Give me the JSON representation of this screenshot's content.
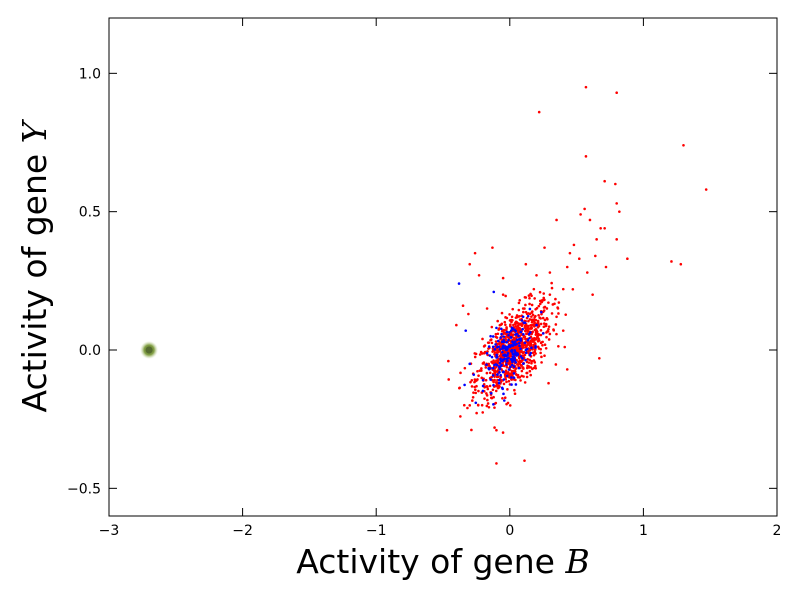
{
  "chart_data": {
    "type": "scatter",
    "title": "",
    "xlabel_text": "Activity of gene ",
    "xlabel_var": "B",
    "ylabel_text": "Activity of gene ",
    "ylabel_var": "Y",
    "xlim": [
      -3,
      2
    ],
    "ylim": [
      -0.6,
      1.2
    ],
    "xticks": [
      -3,
      -2,
      -1,
      0,
      1,
      2
    ],
    "xtick_labels": [
      "−3",
      "−2",
      "−1",
      "0",
      "1",
      "2"
    ],
    "yticks": [
      -0.5,
      0.0,
      0.5,
      1.0
    ],
    "ytick_labels": [
      "−0.5",
      "0.0",
      "0.5",
      "1.0"
    ],
    "grid": false,
    "legend": "none",
    "colors": {
      "red_series": "#ff0000",
      "blue_series": "#0000ff",
      "marker": "#6b8e23",
      "marker_halo": "#9acd32"
    },
    "series": [
      {
        "color": "#ff0000",
        "points": [
          [
            0.57,
            0.95
          ],
          [
            0.8,
            0.93
          ],
          [
            0.22,
            0.86
          ],
          [
            1.3,
            0.74
          ],
          [
            0.57,
            0.7
          ],
          [
            1.47,
            0.58
          ],
          [
            0.71,
            0.61
          ],
          [
            0.79,
            0.6
          ],
          [
            0.8,
            0.53
          ],
          [
            0.82,
            0.5
          ],
          [
            0.56,
            0.51
          ],
          [
            0.53,
            0.49
          ],
          [
            0.6,
            0.47
          ],
          [
            0.35,
            0.47
          ],
          [
            0.68,
            0.44
          ],
          [
            0.71,
            0.44
          ],
          [
            0.8,
            0.4
          ],
          [
            0.65,
            0.4
          ],
          [
            0.48,
            0.38
          ],
          [
            0.88,
            0.33
          ],
          [
            1.21,
            0.32
          ],
          [
            1.28,
            0.31
          ],
          [
            0.64,
            0.34
          ],
          [
            0.72,
            0.3
          ],
          [
            0.52,
            0.33
          ],
          [
            0.43,
            0.3
          ],
          [
            0.26,
            0.37
          ],
          [
            0.58,
            0.28
          ],
          [
            0.62,
            0.2
          ],
          [
            0.4,
            0.22
          ],
          [
            -0.26,
            0.35
          ],
          [
            -0.13,
            0.37
          ],
          [
            -0.3,
            0.31
          ],
          [
            -0.23,
            0.27
          ],
          [
            -0.05,
            0.26
          ],
          [
            -0.35,
            0.16
          ],
          [
            -0.31,
            0.13
          ],
          [
            -0.17,
            0.15
          ],
          [
            -0.4,
            0.09
          ],
          [
            -0.46,
            -0.04
          ],
          [
            -0.47,
            -0.29
          ],
          [
            -0.37,
            -0.24
          ],
          [
            -0.3,
            -0.2
          ],
          [
            -0.1,
            -0.29
          ],
          [
            -0.1,
            -0.41
          ],
          [
            0.11,
            -0.4
          ],
          [
            0.67,
            -0.03
          ],
          [
            0.43,
            -0.07
          ],
          [
            0.29,
            -0.12
          ],
          [
            0.4,
            0.07
          ],
          [
            0.35,
            0.12
          ],
          [
            0.3,
            0.2
          ],
          [
            0.25,
            0.18
          ],
          [
            0.18,
            0.22
          ],
          [
            0.2,
            0.27
          ],
          [
            0.12,
            0.31
          ],
          [
            0.1,
            0.15
          ],
          [
            -0.05,
            0.2
          ],
          [
            0.3,
            0.28
          ],
          [
            0.45,
            0.35
          ]
        ]
      },
      {
        "color": "#0000ff",
        "points": [
          [
            -0.38,
            0.24
          ],
          [
            -0.12,
            0.21
          ],
          [
            -0.33,
            0.07
          ],
          [
            -0.3,
            -0.05
          ],
          [
            -0.2,
            -0.13
          ],
          [
            -0.1,
            0.08
          ],
          [
            0.1,
            0.12
          ],
          [
            0.2,
            0.09
          ],
          [
            0.25,
            0.06
          ],
          [
            -0.05,
            -0.08
          ],
          [
            0.02,
            0.03
          ],
          [
            0.05,
            -0.02
          ],
          [
            -0.08,
            -0.12
          ],
          [
            0.12,
            0.0
          ],
          [
            -0.15,
            -0.02
          ]
        ]
      }
    ],
    "cluster": {
      "color": "#ff0000",
      "center": [
        0.03,
        0.0
      ],
      "spread": [
        0.14,
        0.085
      ],
      "correlation": 0.62,
      "count": 900
    },
    "blue_cluster": {
      "color": "#0000ff",
      "center": [
        0.0,
        -0.01
      ],
      "spread": [
        0.09,
        0.06
      ],
      "correlation": 0.55,
      "count": 180
    },
    "marker_point": [
      -2.7,
      0.0
    ]
  }
}
